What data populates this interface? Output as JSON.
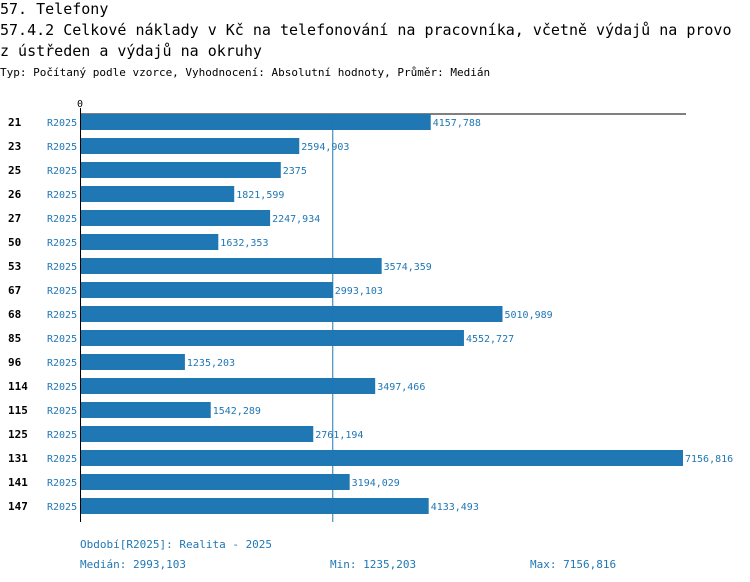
{
  "section_title": "57. Telefony",
  "chart_title_line1": "57.4.2 Celkové náklady v Kč na telefonování na pracovníka, včetně výdajů na provo",
  "chart_title_line2": "z ústředen a výdajů na okruhy",
  "subtitle": "Typ: Počítaný podle vzorce, Vyhodnocení: Absolutní hodnoty, Průměr: Medián",
  "colors": {
    "bar": "#1f77b4",
    "label": "#1f77b4",
    "axis": "#000000",
    "median_line": "#1f77b4"
  },
  "chart_data": {
    "type": "bar",
    "orientation": "horizontal",
    "axis_zero_label": "0",
    "xlim": [
      0,
      7156.816
    ],
    "categories": [
      "21",
      "23",
      "25",
      "26",
      "27",
      "50",
      "53",
      "67",
      "68",
      "85",
      "96",
      "114",
      "115",
      "125",
      "131",
      "141",
      "147"
    ],
    "series_label": "R2025",
    "values": [
      4157.788,
      2594.903,
      2375,
      1821.599,
      2247.934,
      1632.353,
      3574.359,
      2993.103,
      5010.989,
      4552.727,
      1235.203,
      3497.466,
      1542.289,
      2761.194,
      7156.816,
      3194.029,
      4133.493
    ],
    "value_labels": [
      "4157,788",
      "2594,903",
      "2375",
      "1821,599",
      "2247,934",
      "1632,353",
      "3574,359",
      "2993,103",
      "5010,989",
      "4552,727",
      "1235,203",
      "3497,466",
      "1542,289",
      "2761,194",
      "7156,816",
      "3194,029",
      "4133,493"
    ],
    "median": 2993.103
  },
  "footer": {
    "period": "Období[R2025]: Realita - 2025",
    "median": "Medián: 2993,103",
    "min": "Min: 1235,203",
    "max": "Max: 7156,816"
  }
}
